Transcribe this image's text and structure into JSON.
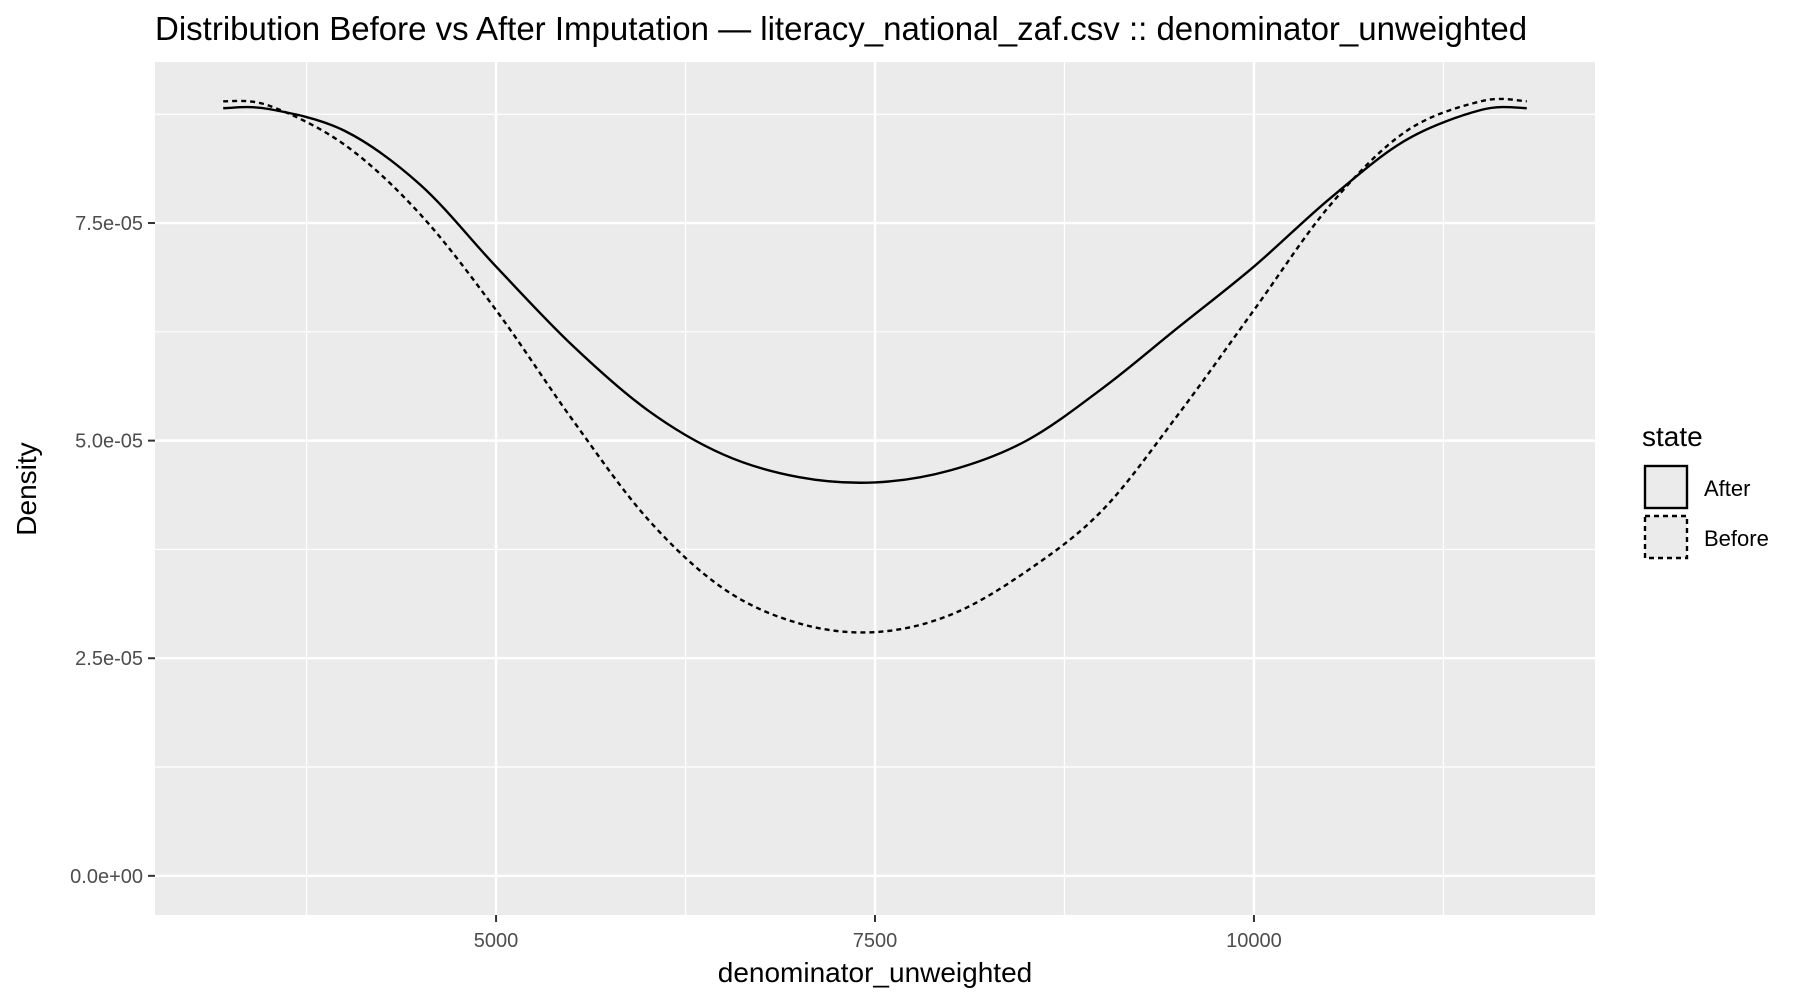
{
  "chart_data": {
    "type": "line",
    "title": "Distribution Before vs After Imputation — literacy_national_zaf.csv :: denominator_unweighted",
    "xlabel": "denominator_unweighted",
    "ylabel": "Density",
    "xlim": [
      2750,
      12250
    ],
    "ylim": [
      -4.5e-06,
      9.35e-05
    ],
    "x_ticks": [
      {
        "value": 5000,
        "label": "5000"
      },
      {
        "value": 7500,
        "label": "7500"
      },
      {
        "value": 10000,
        "label": "10000"
      }
    ],
    "y_ticks": [
      {
        "value": 0,
        "label": "0.0e+00"
      },
      {
        "value": 2.5e-05,
        "label": "2.5e-05"
      },
      {
        "value": 5e-05,
        "label": "5.0e-05"
      },
      {
        "value": 7.5e-05,
        "label": "7.5e-05"
      }
    ],
    "grid": true,
    "legend": {
      "title": "state",
      "position": "right"
    },
    "series": [
      {
        "name": "After",
        "linetype": "solid",
        "color": "#000000",
        "x": [
          3200,
          3500,
          4000,
          4500,
          5000,
          5500,
          6000,
          6500,
          7000,
          7500,
          8000,
          8500,
          9000,
          9500,
          10000,
          10500,
          11000,
          11500,
          11800
        ],
        "y": [
          8.82e-05,
          8.81e-05,
          8.56e-05,
          7.94e-05,
          7e-05,
          6.1e-05,
          5.35e-05,
          4.84e-05,
          4.58e-05,
          4.52e-05,
          4.66e-05,
          5e-05,
          5.6e-05,
          6.3e-05,
          7e-05,
          7.78e-05,
          8.45e-05,
          8.8e-05,
          8.82e-05
        ]
      },
      {
        "name": "Before",
        "linetype": "dashed",
        "color": "#000000",
        "x": [
          3200,
          3500,
          4000,
          4500,
          5000,
          5500,
          6000,
          6500,
          7000,
          7500,
          8000,
          8500,
          9000,
          9500,
          10000,
          10500,
          11000,
          11500,
          11800
        ],
        "y": [
          8.9e-05,
          8.85e-05,
          8.4e-05,
          7.6e-05,
          6.5e-05,
          5.25e-05,
          4.1e-05,
          3.3e-05,
          2.9e-05,
          2.8e-05,
          3e-05,
          3.5e-05,
          4.2e-05,
          5.3e-05,
          6.5e-05,
          7.7e-05,
          8.55e-05,
          8.9e-05,
          8.9e-05
        ]
      }
    ]
  }
}
